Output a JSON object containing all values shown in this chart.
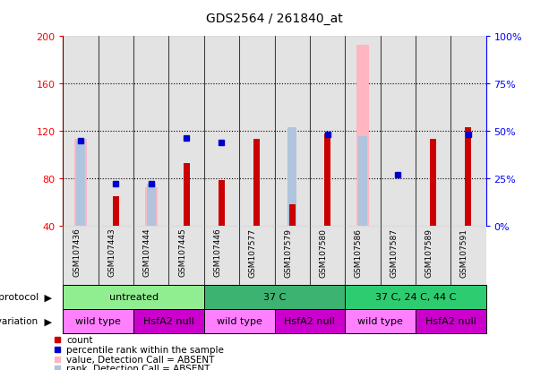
{
  "title": "GDS2564 / 261840_at",
  "samples": [
    "GSM107436",
    "GSM107443",
    "GSM107444",
    "GSM107445",
    "GSM107446",
    "GSM107577",
    "GSM107579",
    "GSM107580",
    "GSM107586",
    "GSM107587",
    "GSM107589",
    "GSM107591"
  ],
  "left_ylim": [
    40,
    200
  ],
  "left_yticks": [
    40,
    80,
    120,
    160,
    200
  ],
  "right_ylim": [
    0,
    100
  ],
  "right_yticks": [
    0,
    25,
    50,
    75,
    100
  ],
  "count_values": [
    null,
    65,
    null,
    93,
    78,
    113,
    58,
    118,
    null,
    null,
    113,
    123
  ],
  "rank_pct": [
    45,
    22,
    22,
    46,
    44,
    null,
    null,
    48,
    null,
    27,
    null,
    48
  ],
  "absent_value_bars": [
    113,
    null,
    72,
    null,
    null,
    null,
    null,
    null,
    193,
    null,
    null,
    null
  ],
  "absent_rank_pct": [
    45,
    null,
    22,
    null,
    null,
    null,
    52,
    null,
    47,
    null,
    null,
    null
  ],
  "protocol_groups": [
    {
      "label": "untreated",
      "start": 0,
      "end": 4,
      "color": "#90EE90"
    },
    {
      "label": "37 C",
      "start": 4,
      "end": 8,
      "color": "#3CB371"
    },
    {
      "label": "37 C, 24 C, 44 C",
      "start": 8,
      "end": 12,
      "color": "#2ECC71"
    }
  ],
  "genotype_groups": [
    {
      "label": "wild type",
      "start": 0,
      "end": 2,
      "color": "#FF80FF"
    },
    {
      "label": "HsfA2 null",
      "start": 2,
      "end": 4,
      "color": "#CC00CC"
    },
    {
      "label": "wild type",
      "start": 4,
      "end": 6,
      "color": "#FF80FF"
    },
    {
      "label": "HsfA2 null",
      "start": 6,
      "end": 8,
      "color": "#CC00CC"
    },
    {
      "label": "wild type",
      "start": 8,
      "end": 10,
      "color": "#FF80FF"
    },
    {
      "label": "HsfA2 null",
      "start": 10,
      "end": 12,
      "color": "#CC00CC"
    }
  ],
  "count_color": "#CC0000",
  "rank_color": "#0000CC",
  "absent_value_color": "#FFB6C1",
  "absent_rank_color": "#B0C4DE",
  "grid_yticks": [
    80,
    120,
    160
  ],
  "legend_items": [
    {
      "label": "count",
      "color": "#CC0000"
    },
    {
      "label": "percentile rank within the sample",
      "color": "#0000CC"
    },
    {
      "label": "value, Detection Call = ABSENT",
      "color": "#FFB6C1"
    },
    {
      "label": "rank, Detection Call = ABSENT",
      "color": "#B0C4DE"
    }
  ]
}
